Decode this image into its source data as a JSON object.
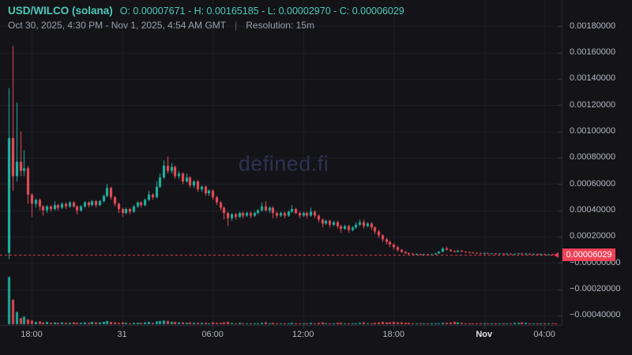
{
  "header": {
    "pair": "USD/WILCO (solana)",
    "ohlc": "O: 0.00007671 - H: 0.00165185 - L: 0.00002970 - C: 0.00006029",
    "date_range": "Oct 30, 2025, 4:30 PM - Nov 1, 2025, 4:54 AM GMT",
    "separator": "|",
    "resolution_label": "Resolution: 15m"
  },
  "watermark": "defined.fi",
  "price_axis": {
    "labels": [
      {
        "t": "0.00180000",
        "v": 180
      },
      {
        "t": "0.00160000",
        "v": 160
      },
      {
        "t": "0.00140000",
        "v": 140
      },
      {
        "t": "0.00120000",
        "v": 120
      },
      {
        "t": "0.00100000",
        "v": 100
      },
      {
        "t": "0.00080000",
        "v": 80
      },
      {
        "t": "0.00060000",
        "v": 60
      },
      {
        "t": "0.00040000",
        "v": 40
      },
      {
        "t": "0.00020000",
        "v": 20
      },
      {
        "t": "−0.00000000",
        "v": 0
      },
      {
        "t": "−0.00020000",
        "v": -20
      },
      {
        "t": "−0.00040000",
        "v": -40
      }
    ],
    "current": {
      "t": "0.00006029",
      "v": 6.029
    }
  },
  "time_axis": {
    "ticks": [
      {
        "t": "18:00",
        "i": 6
      },
      {
        "t": "31",
        "i": 30
      },
      {
        "t": "06:00",
        "i": 54
      },
      {
        "t": "12:00",
        "i": 78
      },
      {
        "t": "18:00",
        "i": 102
      },
      {
        "t": "Nov",
        "i": 126,
        "emph": true
      },
      {
        "t": "04:00",
        "i": 142
      }
    ]
  },
  "chart_data": {
    "type": "candlestick",
    "title": "USD/WILCO (solana)",
    "resolution": "15m",
    "time_range": "Oct 30, 2025, 4:30 PM - Nov 1, 2025, 4:54 AM GMT",
    "summary": {
      "open": 7.671e-05,
      "high": 0.00165185,
      "low": 2.97e-05,
      "close": 6.029e-05
    },
    "price_unit": 1e-05,
    "ylim_units": [
      -47.2,
      200
    ],
    "y_tick_units": [
      180,
      160,
      140,
      120,
      100,
      80,
      60,
      40,
      20,
      0,
      -20,
      -40
    ],
    "grid": true,
    "legend_position": "none",
    "current_price_units": 6.029,
    "candles_ohlc_units": [
      [
        7.671,
        133,
        2.97,
        95
      ],
      [
        95,
        165.185,
        55,
        66
      ],
      [
        66,
        122,
        62,
        77
      ],
      [
        77,
        100,
        66,
        70
      ],
      [
        70,
        86,
        66,
        72
      ],
      [
        72,
        74,
        45,
        52
      ],
      [
        52,
        53,
        35,
        45
      ],
      [
        45,
        49,
        42,
        48
      ],
      [
        48,
        49,
        40,
        43
      ],
      [
        43,
        44,
        36,
        40
      ],
      [
        40,
        44,
        38,
        43
      ],
      [
        43,
        44,
        39,
        41
      ],
      [
        41,
        47,
        40,
        44
      ],
      [
        44,
        45,
        40,
        42
      ],
      [
        42,
        46,
        41,
        45
      ],
      [
        45,
        46,
        41,
        43
      ],
      [
        43,
        47,
        42,
        46
      ],
      [
        46,
        47,
        42,
        43
      ],
      [
        43,
        44,
        37,
        40
      ],
      [
        40,
        44,
        39,
        43
      ],
      [
        43,
        47,
        42,
        46
      ],
      [
        46,
        47,
        42,
        44
      ],
      [
        44,
        48,
        43,
        47
      ],
      [
        47,
        48,
        42,
        44
      ],
      [
        44,
        48,
        43,
        47
      ],
      [
        47,
        52,
        46,
        51
      ],
      [
        51,
        60,
        50,
        57
      ],
      [
        57,
        58,
        48,
        50
      ],
      [
        50,
        51,
        43,
        45
      ],
      [
        45,
        46,
        38,
        41
      ],
      [
        41,
        42,
        35,
        38
      ],
      [
        38,
        42,
        37,
        41
      ],
      [
        41,
        42,
        37,
        39
      ],
      [
        39,
        44,
        38,
        43
      ],
      [
        43,
        47,
        42,
        46
      ],
      [
        46,
        47,
        42,
        44
      ],
      [
        44,
        49,
        43,
        48
      ],
      [
        48,
        55,
        47,
        52
      ],
      [
        52,
        53,
        48,
        50
      ],
      [
        50,
        62,
        49,
        58
      ],
      [
        58,
        68,
        57,
        65
      ],
      [
        65,
        78,
        64,
        74
      ],
      [
        74,
        81,
        68,
        70
      ],
      [
        70,
        76,
        68,
        73
      ],
      [
        73,
        74,
        64,
        66
      ],
      [
        66,
        70,
        64,
        68
      ],
      [
        68,
        69,
        60,
        62
      ],
      [
        62,
        68,
        61,
        65
      ],
      [
        65,
        66,
        57,
        59
      ],
      [
        59,
        63,
        57,
        62
      ],
      [
        62,
        63,
        54,
        56
      ],
      [
        56,
        59,
        54,
        58
      ],
      [
        58,
        59,
        51,
        53
      ],
      [
        53,
        56,
        51,
        55
      ],
      [
        55,
        56,
        48,
        50
      ],
      [
        50,
        51,
        44,
        46
      ],
      [
        46,
        47,
        40,
        42
      ],
      [
        42,
        43,
        33,
        38
      ],
      [
        38,
        39,
        28,
        34
      ],
      [
        34,
        38,
        32,
        37
      ],
      [
        37,
        38,
        33,
        35
      ],
      [
        35,
        39,
        34,
        38
      ],
      [
        38,
        39,
        34,
        36
      ],
      [
        36,
        39,
        35,
        38
      ],
      [
        38,
        39,
        34,
        36
      ],
      [
        36,
        39,
        35,
        38
      ],
      [
        38,
        41,
        37,
        40
      ],
      [
        40,
        46,
        39,
        43
      ],
      [
        43,
        47,
        39,
        40
      ],
      [
        40,
        43,
        38,
        42
      ],
      [
        42,
        43,
        34,
        38
      ],
      [
        38,
        39,
        34,
        36
      ],
      [
        36,
        39,
        35,
        38
      ],
      [
        38,
        39,
        34,
        36
      ],
      [
        36,
        40,
        35,
        39
      ],
      [
        39,
        44,
        38,
        41
      ],
      [
        41,
        42,
        37,
        38
      ],
      [
        38,
        39,
        34,
        36
      ],
      [
        36,
        39,
        35,
        38
      ],
      [
        38,
        39,
        34,
        36
      ],
      [
        36,
        42,
        35,
        39
      ],
      [
        39,
        40,
        34,
        36
      ],
      [
        36,
        37,
        31,
        33
      ],
      [
        33,
        34,
        27,
        30
      ],
      [
        30,
        33,
        29,
        32
      ],
      [
        32,
        33,
        27,
        29
      ],
      [
        29,
        32,
        28,
        31
      ],
      [
        31,
        32,
        26,
        28
      ],
      [
        28,
        29,
        23,
        26
      ],
      [
        26,
        29,
        25,
        28
      ],
      [
        28,
        29,
        23,
        25
      ],
      [
        25,
        28,
        24,
        27
      ],
      [
        27,
        31,
        26,
        29
      ],
      [
        29,
        33,
        28,
        31
      ],
      [
        31,
        33,
        26,
        28
      ],
      [
        28,
        31,
        27,
        30
      ],
      [
        30,
        31,
        25,
        27
      ],
      [
        27,
        28,
        22,
        24
      ],
      [
        24,
        25,
        19,
        21
      ],
      [
        21,
        22,
        16,
        18
      ],
      [
        18,
        19,
        14,
        16
      ],
      [
        16,
        17,
        12,
        14
      ],
      [
        14,
        15,
        10,
        12
      ],
      [
        12,
        13,
        8.5,
        10
      ],
      [
        10,
        10.5,
        7.5,
        8.5
      ],
      [
        8.5,
        9,
        6.8,
        7.5
      ],
      [
        7.5,
        8,
        6.2,
        7
      ],
      [
        7,
        7.5,
        5.8,
        6.5
      ],
      [
        6.5,
        7.2,
        6,
        6.8
      ],
      [
        6.8,
        7,
        5.9,
        6.4
      ],
      [
        6.4,
        7,
        6,
        6.6
      ],
      [
        6.6,
        6.8,
        5.8,
        6.3
      ],
      [
        6.3,
        6.9,
        6,
        6.5
      ],
      [
        6.5,
        7.5,
        6.2,
        7.2
      ],
      [
        7.2,
        9,
        7,
        8.5
      ],
      [
        8.5,
        12,
        8.2,
        11
      ],
      [
        11,
        12.5,
        9.5,
        10
      ],
      [
        10,
        10.5,
        8.5,
        9
      ],
      [
        9,
        9.5,
        8,
        8.5
      ],
      [
        8.5,
        9.8,
        8.2,
        9.4
      ],
      [
        9.4,
        9.6,
        8.2,
        8.6
      ],
      [
        8.6,
        9,
        7.8,
        8.2
      ],
      [
        8.2,
        8.6,
        7.6,
        8
      ],
      [
        8,
        8.4,
        7.3,
        7.7
      ],
      [
        7.7,
        8.1,
        7.1,
        7.5
      ],
      [
        7.5,
        7.9,
        6.9,
        7.2
      ],
      [
        7.2,
        7.8,
        6.9,
        7.5
      ],
      [
        7.5,
        7.7,
        6.8,
        7
      ],
      [
        7,
        7.6,
        6.8,
        7.3
      ],
      [
        7.3,
        7.5,
        6.6,
        6.9
      ],
      [
        6.9,
        7.5,
        6.7,
        7.2
      ],
      [
        7.2,
        7.4,
        6.5,
        6.8
      ],
      [
        6.8,
        7.4,
        6.6,
        7.1
      ],
      [
        7.1,
        7.3,
        6.4,
        6.7
      ],
      [
        6.7,
        7.3,
        6.5,
        7
      ],
      [
        7,
        7.6,
        6.8,
        7.3
      ],
      [
        7.3,
        7.5,
        6.6,
        6.9
      ],
      [
        6.9,
        7.4,
        6.6,
        7.1
      ],
      [
        7.1,
        7.2,
        6.3,
        6.6
      ],
      [
        6.6,
        7.2,
        6.4,
        6.9
      ],
      [
        6.9,
        7,
        6.2,
        6.5
      ],
      [
        6.5,
        7.1,
        6.3,
        6.8
      ],
      [
        6.8,
        6.9,
        6.1,
        6.4
      ],
      [
        6.4,
        6.9,
        6.2,
        6.6
      ],
      [
        6.6,
        6.8,
        5.9,
        6.2
      ],
      [
        6.2,
        6.5,
        5.8,
        6.029
      ]
    ],
    "volume_relative": [
      100,
      52,
      26,
      13,
      16,
      10,
      8,
      5,
      6,
      4,
      5,
      3,
      4,
      3,
      4,
      3,
      3,
      4,
      3,
      3,
      4,
      3,
      5,
      4,
      4,
      5,
      7,
      5,
      4,
      3,
      4,
      3,
      2,
      3,
      3,
      3,
      4,
      5,
      3,
      6,
      7,
      8,
      7,
      5,
      5,
      4,
      4,
      3,
      4,
      3,
      3,
      3,
      3,
      2,
      4,
      3,
      3,
      4,
      5,
      3,
      2,
      3,
      2,
      2,
      2,
      2,
      2,
      3,
      4,
      2,
      3,
      2,
      2,
      2,
      2,
      3,
      2,
      2,
      2,
      2,
      3,
      2,
      3,
      4,
      2,
      2,
      2,
      3,
      3,
      2,
      2,
      2,
      2,
      3,
      4,
      2,
      2,
      3,
      4,
      5,
      4,
      4,
      5,
      4,
      4,
      3,
      3,
      2,
      2,
      2,
      2,
      1.5,
      2,
      2,
      2,
      3,
      3,
      4,
      5,
      4,
      3,
      2,
      2,
      2,
      2,
      2,
      2,
      1.5,
      1.5,
      2,
      1.5,
      2,
      1.5,
      2,
      3,
      3,
      4,
      3,
      2,
      2,
      2,
      2,
      2,
      2,
      2,
      2
    ],
    "colors": {
      "up": "#20b9a4",
      "down": "#ef4f5a",
      "price_line": "#ef4156",
      "badge_bg": "#ef4156",
      "grid": "#212228",
      "axis_border": "#2e3039",
      "axis_tick": "#3a3d46",
      "axis_text": "#b5b9c2",
      "header_accent": "#4ecab8",
      "muted_text": "#9aa0a8",
      "background": "#131318",
      "watermark": "rgba(106,109,190,0.34)"
    }
  }
}
